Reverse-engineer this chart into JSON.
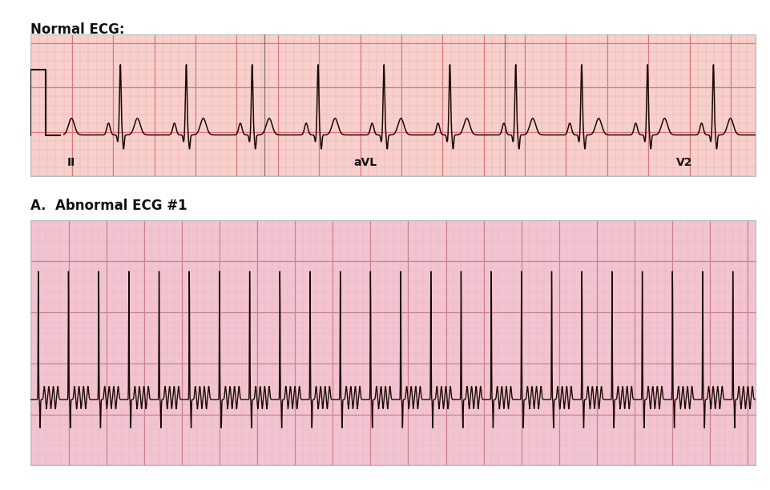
{
  "title1": "Normal ECG:",
  "title2": "A.  Abnormal ECG #1",
  "bg_color": "#ffffff",
  "ecg1_bg": "#f7d0cc",
  "ecg2_bg": "#f2c4d0",
  "grid_minor_color1": "#eeaaaa",
  "grid_major_color1": "#dd7777",
  "grid_minor_color2": "#e8b0c0",
  "grid_major_color2": "#cc8090",
  "ecg_line_color": "#1a0800",
  "label_II": "II",
  "label_aVL": "aVL",
  "label_V2": "V2",
  "title_fontsize": 12,
  "label_fontsize": 10,
  "fig_width": 9.62,
  "fig_height": 6.12,
  "dpi": 100
}
